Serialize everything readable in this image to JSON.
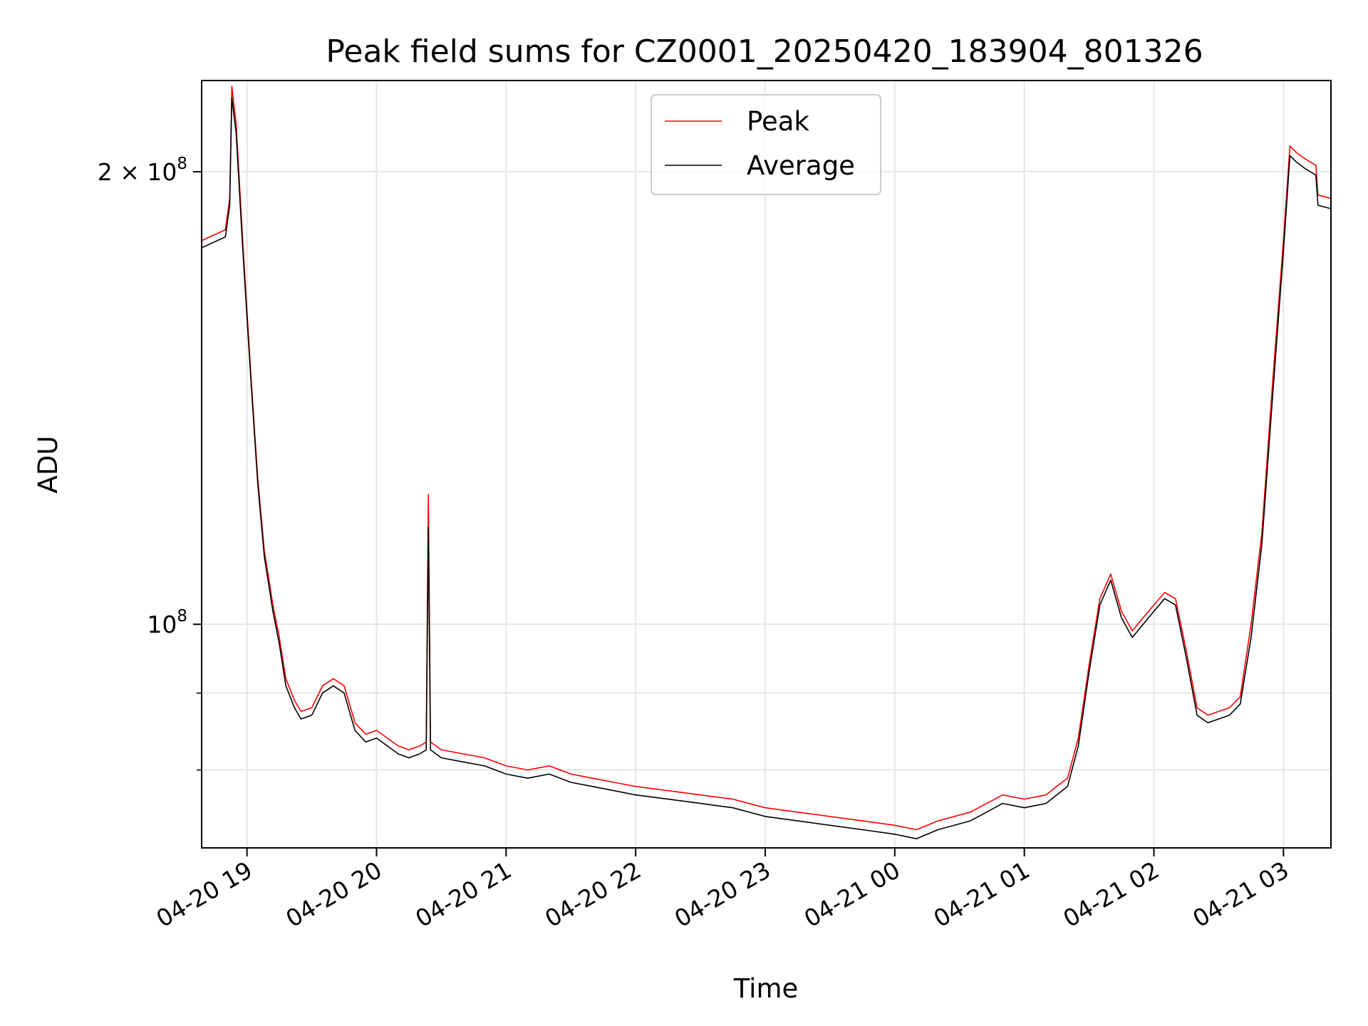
{
  "chart_data": {
    "type": "line",
    "title": "Peak field sums for CZ0001_20250420_183904_801326",
    "xlabel": "Time",
    "ylabel": "ADU",
    "yscale": "log",
    "grid": true,
    "legend_placement": "top-center",
    "x_range": [
      "2025-04-20 18:39",
      "2025-04-21 03:22"
    ],
    "ylim": [
      71000000,
      230000000
    ],
    "x_ticks": [
      {
        "value": "2025-04-20 19:00",
        "label": "04-20 19"
      },
      {
        "value": "2025-04-20 20:00",
        "label": "04-20 20"
      },
      {
        "value": "2025-04-20 21:00",
        "label": "04-20 21"
      },
      {
        "value": "2025-04-20 22:00",
        "label": "04-20 22"
      },
      {
        "value": "2025-04-20 23:00",
        "label": "04-20 23"
      },
      {
        "value": "2025-04-21 00:00",
        "label": "04-21 00"
      },
      {
        "value": "2025-04-21 01:00",
        "label": "04-21 01"
      },
      {
        "value": "2025-04-21 02:00",
        "label": "04-21 02"
      },
      {
        "value": "2025-04-21 03:00",
        "label": "04-21 03"
      }
    ],
    "y_ticks_major": [
      {
        "value": 100000000,
        "base": "10",
        "exp": "8",
        "coef": ""
      },
      {
        "value": 200000000,
        "base": "10",
        "exp": "8",
        "coef": "2 × "
      }
    ],
    "y_ticks_minor": [
      80000000,
      90000000
    ],
    "series": [
      {
        "name": "Peak",
        "color": "#ff0000",
        "x": [
          "2025-04-20 18:39",
          "2025-04-20 18:50",
          "2025-04-20 18:52",
          "2025-04-20 18:53",
          "2025-04-20 18:55",
          "2025-04-20 18:58",
          "2025-04-20 19:02",
          "2025-04-20 19:05",
          "2025-04-20 19:08",
          "2025-04-20 19:12",
          "2025-04-20 19:15",
          "2025-04-20 19:18",
          "2025-04-20 19:22",
          "2025-04-20 19:25",
          "2025-04-20 19:30",
          "2025-04-20 19:35",
          "2025-04-20 19:40",
          "2025-04-20 19:45",
          "2025-04-20 19:50",
          "2025-04-20 19:55",
          "2025-04-20 20:00",
          "2025-04-20 20:05",
          "2025-04-20 20:10",
          "2025-04-20 20:15",
          "2025-04-20 20:20",
          "2025-04-20 20:23",
          "2025-04-20 20:24",
          "2025-04-20 20:25",
          "2025-04-20 20:30",
          "2025-04-20 20:40",
          "2025-04-20 20:50",
          "2025-04-20 21:00",
          "2025-04-20 21:10",
          "2025-04-20 21:20",
          "2025-04-20 21:30",
          "2025-04-20 21:40",
          "2025-04-20 21:50",
          "2025-04-20 22:00",
          "2025-04-20 22:15",
          "2025-04-20 22:30",
          "2025-04-20 22:45",
          "2025-04-20 23:00",
          "2025-04-20 23:15",
          "2025-04-20 23:30",
          "2025-04-20 23:45",
          "2025-04-21 00:00",
          "2025-04-21 00:10",
          "2025-04-21 00:20",
          "2025-04-21 00:35",
          "2025-04-21 00:50",
          "2025-04-21 01:00",
          "2025-04-21 01:10",
          "2025-04-21 01:15",
          "2025-04-21 01:20",
          "2025-04-21 01:25",
          "2025-04-21 01:30",
          "2025-04-21 01:35",
          "2025-04-21 01:40",
          "2025-04-21 01:45",
          "2025-04-21 01:50",
          "2025-04-21 01:55",
          "2025-04-21 02:00",
          "2025-04-21 02:05",
          "2025-04-21 02:10",
          "2025-04-21 02:15",
          "2025-04-21 02:20",
          "2025-04-21 02:25",
          "2025-04-21 02:30",
          "2025-04-21 02:35",
          "2025-04-21 02:40",
          "2025-04-21 02:45",
          "2025-04-21 02:50",
          "2025-04-21 02:55",
          "2025-04-21 03:00",
          "2025-04-21 03:03",
          "2025-04-21 03:06",
          "2025-04-21 03:10",
          "2025-04-21 03:15",
          "2025-04-21 03:16",
          "2025-04-21 03:22"
        ],
        "y": [
          180000000,
          183000000,
          192000000,
          228000000,
          215000000,
          180000000,
          145000000,
          125000000,
          112000000,
          103000000,
          98000000,
          92000000,
          89000000,
          87500000,
          88000000,
          91000000,
          92000000,
          91000000,
          86000000,
          84500000,
          85000000,
          84000000,
          83000000,
          82500000,
          83000000,
          83500000,
          122000000,
          83500000,
          82500000,
          82000000,
          81500000,
          80500000,
          80000000,
          80500000,
          79500000,
          79000000,
          78500000,
          78000000,
          77500000,
          77000000,
          76500000,
          75500000,
          75000000,
          74500000,
          74000000,
          73500000,
          73000000,
          74000000,
          75000000,
          77000000,
          76500000,
          77000000,
          78000000,
          79000000,
          84000000,
          94000000,
          104000000,
          108000000,
          102000000,
          99000000,
          101000000,
          103000000,
          105000000,
          104000000,
          96000000,
          88000000,
          87000000,
          87500000,
          88000000,
          89500000,
          100000000,
          115000000,
          145000000,
          180000000,
          208000000,
          206000000,
          204000000,
          202000000,
          193000000,
          192000000
        ]
      },
      {
        "name": "Average",
        "color": "#000000",
        "x": [
          "2025-04-20 18:39",
          "2025-04-20 18:50",
          "2025-04-20 18:52",
          "2025-04-20 18:53",
          "2025-04-20 18:55",
          "2025-04-20 18:58",
          "2025-04-20 19:02",
          "2025-04-20 19:05",
          "2025-04-20 19:08",
          "2025-04-20 19:12",
          "2025-04-20 19:15",
          "2025-04-20 19:18",
          "2025-04-20 19:22",
          "2025-04-20 19:25",
          "2025-04-20 19:30",
          "2025-04-20 19:35",
          "2025-04-20 19:40",
          "2025-04-20 19:45",
          "2025-04-20 19:50",
          "2025-04-20 19:55",
          "2025-04-20 20:00",
          "2025-04-20 20:05",
          "2025-04-20 20:10",
          "2025-04-20 20:15",
          "2025-04-20 20:20",
          "2025-04-20 20:23",
          "2025-04-20 20:24",
          "2025-04-20 20:25",
          "2025-04-20 20:30",
          "2025-04-20 20:40",
          "2025-04-20 20:50",
          "2025-04-20 21:00",
          "2025-04-20 21:10",
          "2025-04-20 21:20",
          "2025-04-20 21:30",
          "2025-04-20 21:40",
          "2025-04-20 21:50",
          "2025-04-20 22:00",
          "2025-04-20 22:15",
          "2025-04-20 22:30",
          "2025-04-20 22:45",
          "2025-04-20 23:00",
          "2025-04-20 23:15",
          "2025-04-20 23:30",
          "2025-04-20 23:45",
          "2025-04-21 00:00",
          "2025-04-21 00:10",
          "2025-04-21 00:20",
          "2025-04-21 00:35",
          "2025-04-21 00:50",
          "2025-04-21 01:00",
          "2025-04-21 01:10",
          "2025-04-21 01:15",
          "2025-04-21 01:20",
          "2025-04-21 01:25",
          "2025-04-21 01:30",
          "2025-04-21 01:35",
          "2025-04-21 01:40",
          "2025-04-21 01:45",
          "2025-04-21 01:50",
          "2025-04-21 01:55",
          "2025-04-21 02:00",
          "2025-04-21 02:05",
          "2025-04-21 02:10",
          "2025-04-21 02:15",
          "2025-04-21 02:20",
          "2025-04-21 02:25",
          "2025-04-21 02:30",
          "2025-04-21 02:35",
          "2025-04-21 02:40",
          "2025-04-21 02:45",
          "2025-04-21 02:50",
          "2025-04-21 02:55",
          "2025-04-21 03:00",
          "2025-04-21 03:03",
          "2025-04-21 03:06",
          "2025-04-21 03:10",
          "2025-04-21 03:15",
          "2025-04-21 03:16",
          "2025-04-21 03:22"
        ],
        "y": [
          178000000,
          181000000,
          190000000,
          224000000,
          212000000,
          178000000,
          144000000,
          124000000,
          111000000,
          102000000,
          97000000,
          91000000,
          88000000,
          86500000,
          87000000,
          90000000,
          91000000,
          90000000,
          85000000,
          83500000,
          84000000,
          83000000,
          82000000,
          81500000,
          82000000,
          82500000,
          116000000,
          82500000,
          81500000,
          81000000,
          80500000,
          79500000,
          79000000,
          79500000,
          78500000,
          78000000,
          77500000,
          77000000,
          76500000,
          76000000,
          75500000,
          74500000,
          74000000,
          73500000,
          73000000,
          72500000,
          72000000,
          73000000,
          74000000,
          76000000,
          75500000,
          76000000,
          77000000,
          78000000,
          83000000,
          93000000,
          103000000,
          107000000,
          101000000,
          98000000,
          100000000,
          102000000,
          104000000,
          103000000,
          95000000,
          87000000,
          86000000,
          86500000,
          87000000,
          88500000,
          98000000,
          113000000,
          142000000,
          177000000,
          205000000,
          203000000,
          201000000,
          199000000,
          190000000,
          189000000
        ]
      }
    ]
  }
}
